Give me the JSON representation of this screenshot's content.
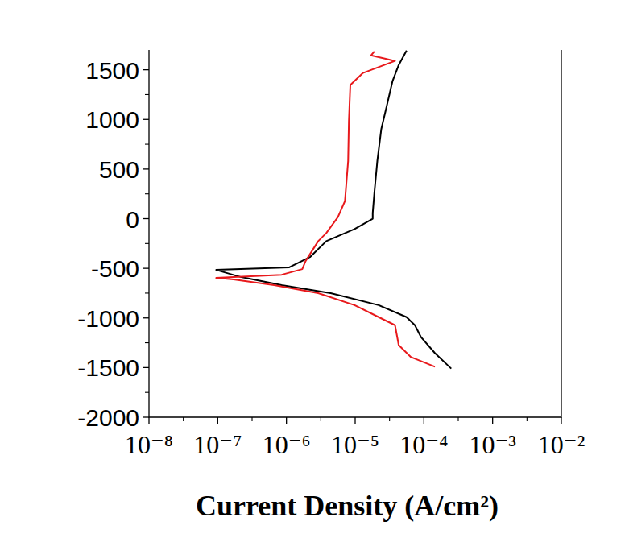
{
  "chart_data": {
    "type": "line",
    "x_label": "Current Density (A/cm²)",
    "log": "x",
    "xlim": [
      1e-08,
      0.01
    ],
    "xticks": [
      {
        "value": 1e-08,
        "label": "10⁻⁸"
      },
      {
        "value": 1e-07,
        "label": "10⁻⁷"
      },
      {
        "value": 1e-06,
        "label": "10⁻⁶"
      },
      {
        "value": 1e-05,
        "label": "10⁻⁵"
      },
      {
        "value": 0.0001,
        "label": "10⁻⁴"
      },
      {
        "value": 0.001,
        "label": "10⁻³"
      },
      {
        "value": 0.01,
        "label": "10⁻²"
      }
    ],
    "ylim": [
      -2000,
      1700
    ],
    "yticks": [
      -2000,
      -1500,
      -1000,
      -500,
      0,
      500,
      1000,
      1500
    ],
    "series": [
      {
        "color": "#000000",
        "x": [
          0.00025,
          0.000145,
          9.1e-05,
          7.4e-05,
          5.6e-05,
          2.2e-05,
          4.4e-06,
          8.5e-07,
          2.2e-07,
          9.5e-08,
          1.1e-06,
          2.2e-06,
          3.8e-06,
          9.8e-06,
          1.8e-05,
          1.8e-05,
          1.9e-05,
          2.1e-05,
          2.4e-05,
          2.9e-05,
          3.5e-05,
          4.3e-05,
          5.6e-05
        ],
        "values": [
          -1510,
          -1355,
          -1194,
          -1073,
          -992,
          -871,
          -750,
          -669,
          -589,
          -516,
          -490,
          -387,
          -226,
          -105,
          0,
          56,
          258,
          581,
          903,
          1145,
          1387,
          1548,
          1694
        ]
      },
      {
        "color": "#e8191c",
        "x": [
          0.000145,
          6.5e-05,
          4.3e-05,
          3.8e-05,
          2.2e-05,
          9.8e-06,
          2.9e-06,
          6.6e-07,
          1.7e-07,
          9.5e-08,
          8.5e-07,
          1.7e-06,
          1.9e-06,
          2.9e-06,
          3.8e-06,
          5.6e-06,
          7.1e-06,
          7.9e-06,
          8.1e-06,
          8.5e-06,
          1.3e-05,
          3.8e-05,
          2.7e-05,
          1.7e-05,
          1.9e-05
        ],
        "values": [
          -1492,
          -1395,
          -1274,
          -1073,
          -992,
          -871,
          -750,
          -669,
          -613,
          -597,
          -565,
          -508,
          -427,
          -226,
          -145,
          16,
          177,
          581,
          984,
          1347,
          1468,
          1589,
          1613,
          1645,
          1685
        ]
      }
    ]
  }
}
